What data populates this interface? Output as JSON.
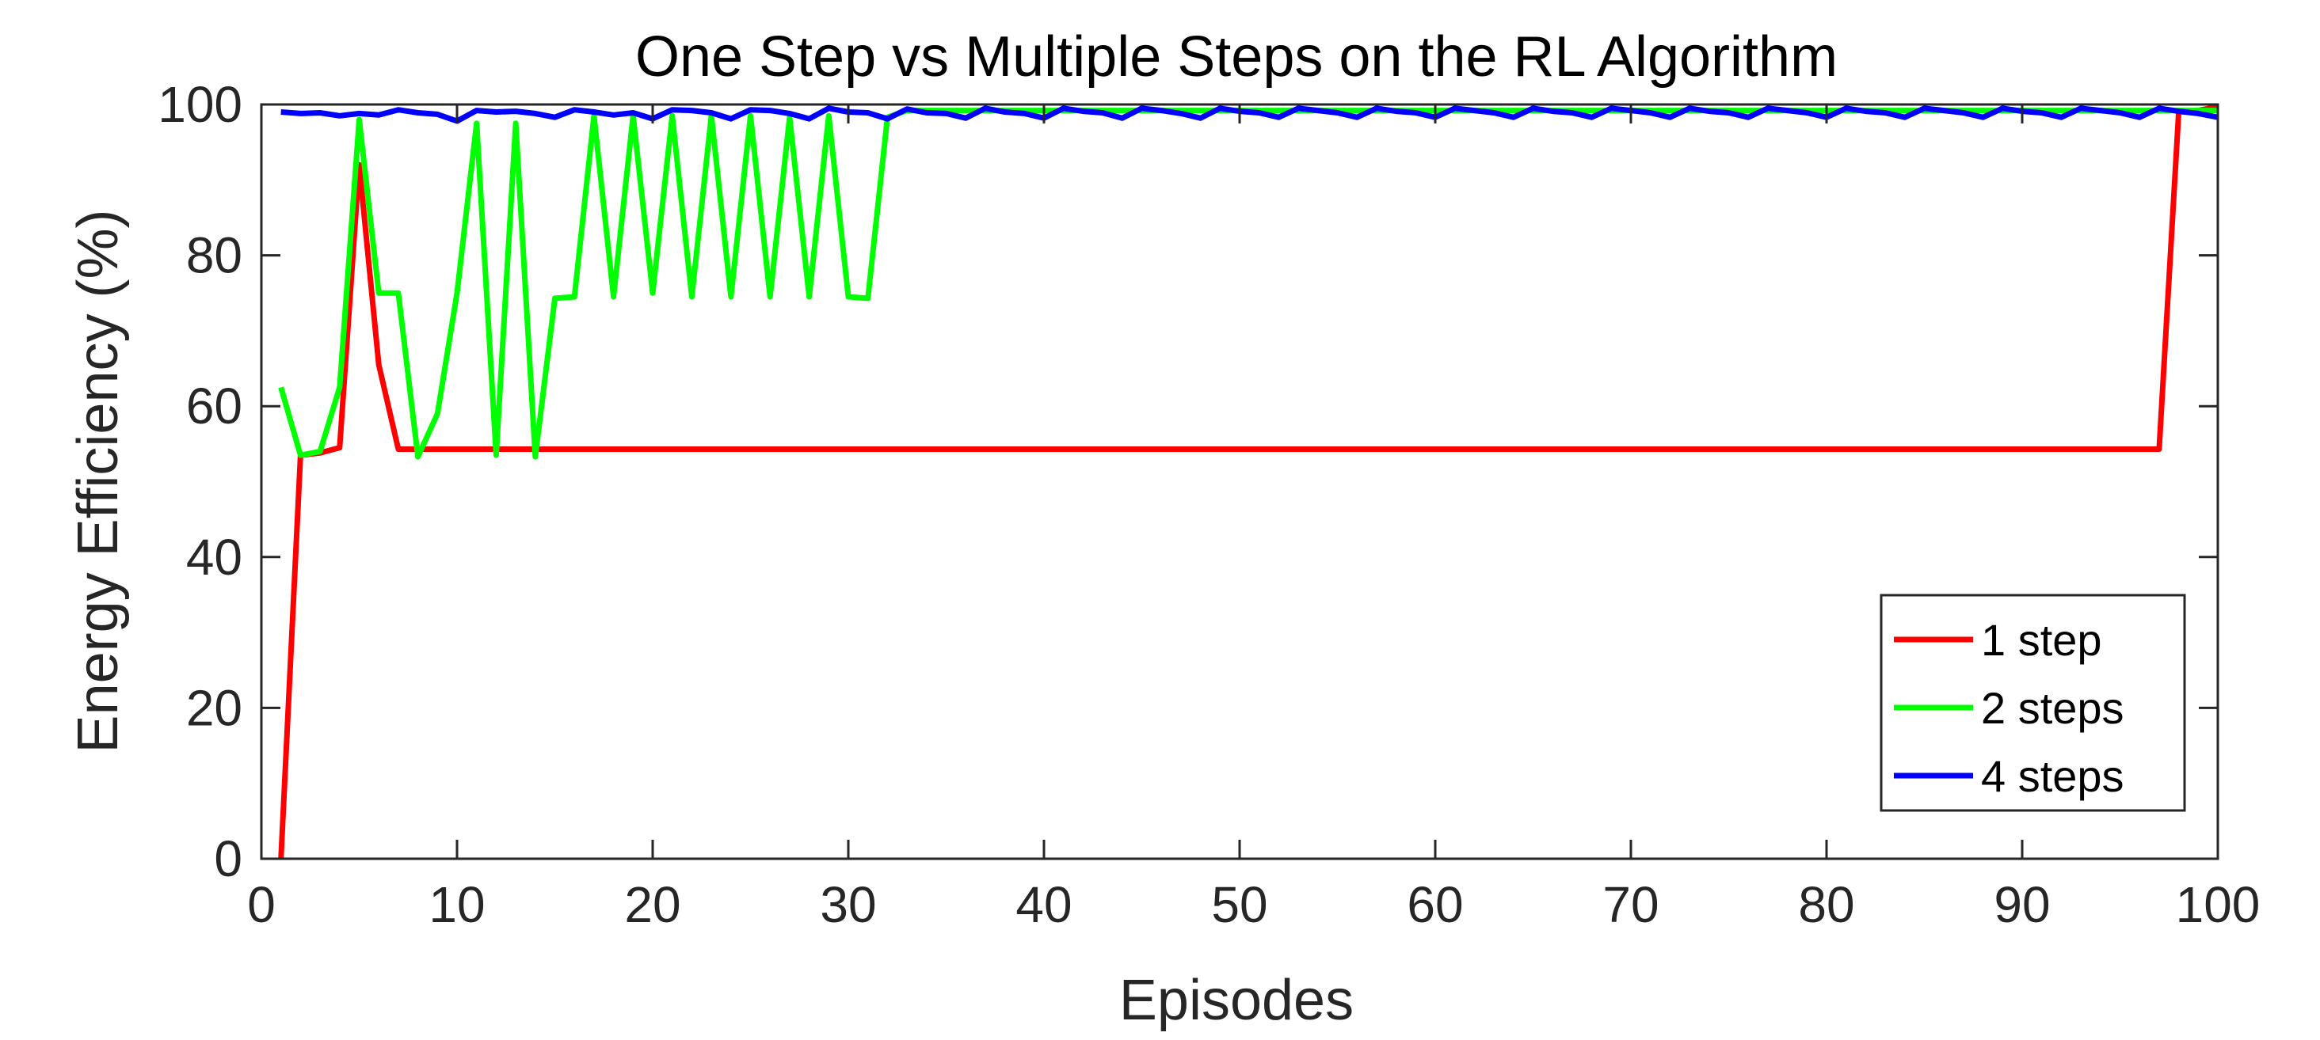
{
  "chart_data": {
    "type": "line",
    "title": "One Step vs Multiple Steps on the RL Algorithm",
    "xlabel": "Episodes",
    "ylabel": "Energy Efficiency (%)",
    "xlim": [
      0,
      100
    ],
    "ylim": [
      0,
      100
    ],
    "xticks": [
      0,
      10,
      20,
      30,
      40,
      50,
      60,
      70,
      80,
      90,
      100
    ],
    "yticks": [
      0,
      20,
      40,
      60,
      80,
      100
    ],
    "grid": false,
    "legend_position": "bottom-right",
    "series": [
      {
        "name": "1 step",
        "color": "#ff0000",
        "x": [
          1,
          2,
          3,
          4,
          5,
          6,
          7,
          8,
          10,
          20,
          30,
          40,
          50,
          60,
          70,
          80,
          90,
          97,
          98,
          99,
          100
        ],
        "y": [
          0,
          53.5,
          53.8,
          54.5,
          92,
          65.5,
          54.3,
          54.3,
          54.3,
          54.3,
          54.3,
          54.3,
          54.3,
          54.3,
          54.3,
          54.3,
          54.3,
          54.3,
          99,
          99.2,
          99.7
        ]
      },
      {
        "name": "2 steps",
        "color": "#00ff00",
        "x": [
          1,
          2,
          3,
          4,
          5,
          6,
          7,
          8,
          9,
          10,
          11,
          12,
          13,
          14,
          15,
          16,
          17,
          18,
          19,
          20,
          21,
          22,
          23,
          24,
          25,
          26,
          27,
          28,
          29,
          30,
          31,
          32,
          33,
          35,
          40,
          45,
          50,
          55,
          60,
          65,
          70,
          75,
          80,
          85,
          90,
          95,
          100
        ],
        "y": [
          62.5,
          53.5,
          54,
          62.5,
          98,
          75,
          75,
          53.3,
          59,
          75,
          97.5,
          53.5,
          97.5,
          53.3,
          74.3,
          74.5,
          98.5,
          74.5,
          98.5,
          75,
          98.5,
          74.5,
          98.5,
          74.5,
          98.5,
          74.5,
          98.3,
          74.5,
          98.5,
          74.5,
          74.3,
          98.3,
          99.2,
          99.2,
          99.2,
          99.2,
          99.2,
          99.2,
          99.2,
          99.2,
          99.2,
          99.2,
          99.2,
          99.2,
          99.2,
          99.2,
          99.2
        ]
      },
      {
        "name": "4 steps",
        "color": "#0000ff",
        "x": [
          1,
          2,
          3,
          4,
          5,
          6,
          7,
          8,
          9,
          10,
          11,
          12,
          13,
          14,
          15,
          16,
          17,
          18,
          19,
          20,
          21,
          22,
          23,
          24,
          25,
          26,
          27,
          28,
          29,
          30,
          31,
          32,
          33,
          34,
          35,
          36,
          37,
          38,
          39,
          40,
          41,
          42,
          43,
          44,
          45,
          46,
          47,
          48,
          49,
          50,
          51,
          52,
          53,
          54,
          55,
          56,
          57,
          58,
          59,
          60,
          61,
          62,
          63,
          64,
          65,
          66,
          67,
          68,
          69,
          70,
          71,
          72,
          73,
          74,
          75,
          76,
          77,
          78,
          79,
          80,
          81,
          82,
          83,
          84,
          85,
          86,
          87,
          88,
          89,
          90,
          91,
          92,
          93,
          94,
          95,
          96,
          97,
          98,
          99,
          100
        ],
        "y": [
          99,
          98.8,
          98.9,
          98.5,
          98.8,
          98.6,
          99.3,
          98.9,
          98.7,
          97.8,
          99.2,
          99,
          99.1,
          98.8,
          98.3,
          99.3,
          99,
          98.6,
          98.9,
          98.1,
          99.3,
          99.2,
          98.9,
          98.1,
          99.3,
          99.2,
          98.8,
          98.1,
          99.5,
          99,
          98.9,
          98.1,
          99.4,
          98.9,
          98.8,
          98.2,
          99.5,
          99,
          98.8,
          98.2,
          99.5,
          99.1,
          98.9,
          98.2,
          99.5,
          99.2,
          98.8,
          98.2,
          99.5,
          99.1,
          98.9,
          98.3,
          99.5,
          99.2,
          98.9,
          98.3,
          99.5,
          99.1,
          98.9,
          98.3,
          99.5,
          99.2,
          98.9,
          98.3,
          99.5,
          99.1,
          98.9,
          98.3,
          99.5,
          99.2,
          98.9,
          98.3,
          99.5,
          99.1,
          98.9,
          98.3,
          99.5,
          99.2,
          98.9,
          98.3,
          99.5,
          99.1,
          98.9,
          98.3,
          99.5,
          99.2,
          98.9,
          98.3,
          99.5,
          99.1,
          98.9,
          98.3,
          99.5,
          99.2,
          98.9,
          98.3,
          99.5,
          99.1,
          98.8,
          98.3
        ]
      }
    ]
  }
}
